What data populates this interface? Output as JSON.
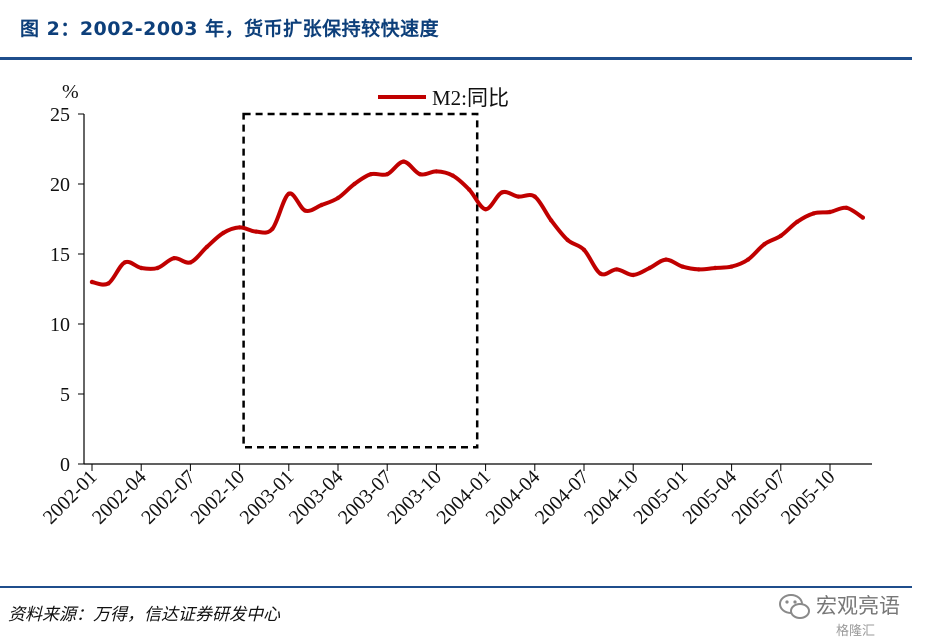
{
  "header": {
    "title": "图 2：2002-2003 年，货币扩张保持较快速度"
  },
  "footer": {
    "source": "资料来源：万得，信达证券研发中心"
  },
  "watermark": {
    "text": "宏观亮语",
    "sub": "格隆汇"
  },
  "chart_data": {
    "type": "line",
    "y_unit": "%",
    "ylim": [
      0,
      25
    ],
    "y_ticks": [
      "0",
      "5",
      "10",
      "15",
      "20",
      "25"
    ],
    "x_ticks": [
      "2002-01",
      "2002-04",
      "2002-07",
      "2002-10",
      "2003-01",
      "2003-04",
      "2003-07",
      "2003-10",
      "2004-01",
      "2004-04",
      "2004-07",
      "2004-10",
      "2005-01",
      "2005-04",
      "2005-07",
      "2005-10"
    ],
    "legend": "top-center",
    "series": [
      {
        "name": "M2:同比",
        "color": "#c00000",
        "x": [
          "2002-01",
          "2002-02",
          "2002-03",
          "2002-04",
          "2002-05",
          "2002-06",
          "2002-07",
          "2002-08",
          "2002-09",
          "2002-10",
          "2002-11",
          "2002-12",
          "2003-01",
          "2003-02",
          "2003-03",
          "2003-04",
          "2003-05",
          "2003-06",
          "2003-07",
          "2003-08",
          "2003-09",
          "2003-10",
          "2003-11",
          "2003-12",
          "2004-01",
          "2004-02",
          "2004-03",
          "2004-04",
          "2004-05",
          "2004-06",
          "2004-07",
          "2004-08",
          "2004-09",
          "2004-10",
          "2004-11",
          "2004-12",
          "2005-01",
          "2005-02",
          "2005-03",
          "2005-04",
          "2005-05",
          "2005-06",
          "2005-07",
          "2005-08",
          "2005-09",
          "2005-10",
          "2005-11",
          "2005-12"
        ],
        "values": [
          13.0,
          12.9,
          14.4,
          14.0,
          14.0,
          14.7,
          14.4,
          15.5,
          16.5,
          16.9,
          16.6,
          16.8,
          19.3,
          18.1,
          18.5,
          19.0,
          20.0,
          20.7,
          20.7,
          21.6,
          20.7,
          20.9,
          20.6,
          19.6,
          18.2,
          19.4,
          19.1,
          19.1,
          17.4,
          16.0,
          15.3,
          13.6,
          13.9,
          13.5,
          14.0,
          14.6,
          14.1,
          13.9,
          14.0,
          14.1,
          14.6,
          15.7,
          16.3,
          17.3,
          17.9,
          18.0,
          18.3,
          17.6
        ]
      }
    ],
    "highlight": {
      "style": "dashed-rectangle",
      "x_start": "2002-10",
      "x_end": "2003-12",
      "y_min": 1.2,
      "y_max": 25
    }
  }
}
